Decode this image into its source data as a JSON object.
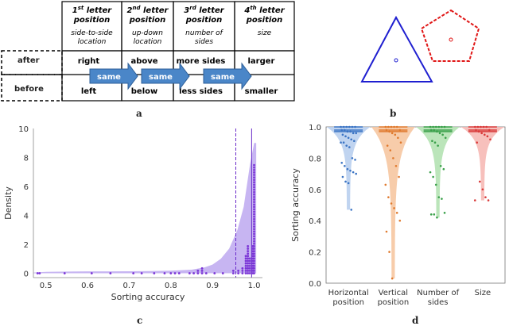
{
  "panel_a": {
    "columns": [
      {
        "ord": "1",
        "sup": "st",
        "title": "letter",
        "title2": "position",
        "desc1": "side-to-side",
        "desc2": "location"
      },
      {
        "ord": "2",
        "sup": "nd",
        "title": "letter",
        "title2": "position",
        "desc1": "up-down",
        "desc2": "location"
      },
      {
        "ord": "3",
        "sup": "rd",
        "title": "letter",
        "title2": "position",
        "desc1": "number of",
        "desc2": "sides"
      },
      {
        "ord": "4",
        "sup": "th",
        "title": "letter",
        "title2": "position",
        "desc1": "size",
        "desc2": ""
      }
    ],
    "rows": [
      "after",
      "before"
    ],
    "after_values": [
      "right",
      "above",
      "more sides",
      "larger"
    ],
    "before_values": [
      "left",
      "below",
      "less sides",
      "smaller"
    ],
    "arrow_label": "same",
    "caption": "a"
  },
  "panel_b": {
    "caption": "b",
    "colors": {
      "triangle": "#1f1fd0",
      "pentagon": "#e01515"
    }
  },
  "panel_c": {
    "caption": "c",
    "chart_data": {
      "type": "scatter",
      "xlabel": "Sorting accuracy",
      "ylabel": "Density",
      "xlim": [
        0.47,
        1.02
      ],
      "ylim": [
        -0.3,
        10
      ],
      "xticks": [
        "0.5",
        "0.6",
        "0.7",
        "0.8",
        "0.9",
        "1.0"
      ],
      "yticks": [
        "0",
        "2",
        "4",
        "6",
        "8",
        "10"
      ],
      "vlines": [
        {
          "x": 0.956,
          "style": "dashed"
        },
        {
          "x": 0.994,
          "style": "solid"
        }
      ],
      "density_curve": [
        [
          0.47,
          0.05
        ],
        [
          0.5,
          0.1
        ],
        [
          0.55,
          0.12
        ],
        [
          0.6,
          0.13
        ],
        [
          0.65,
          0.13
        ],
        [
          0.7,
          0.14
        ],
        [
          0.75,
          0.15
        ],
        [
          0.8,
          0.18
        ],
        [
          0.85,
          0.25
        ],
        [
          0.88,
          0.4
        ],
        [
          0.9,
          0.6
        ],
        [
          0.92,
          1.0
        ],
        [
          0.94,
          1.7
        ],
        [
          0.96,
          3.0
        ],
        [
          0.975,
          4.6
        ],
        [
          0.99,
          7.5
        ],
        [
          1.0,
          9.0
        ],
        [
          1.005,
          9.0
        ]
      ],
      "stack_points": [
        {
          "x": 0.48,
          "n": 1
        },
        {
          "x": 0.485,
          "n": 1
        },
        {
          "x": 0.545,
          "n": 1
        },
        {
          "x": 0.61,
          "n": 1
        },
        {
          "x": 0.655,
          "n": 1
        },
        {
          "x": 0.71,
          "n": 1
        },
        {
          "x": 0.73,
          "n": 1
        },
        {
          "x": 0.76,
          "n": 1
        },
        {
          "x": 0.785,
          "n": 1
        },
        {
          "x": 0.8,
          "n": 1
        },
        {
          "x": 0.81,
          "n": 1
        },
        {
          "x": 0.82,
          "n": 1
        },
        {
          "x": 0.845,
          "n": 1
        },
        {
          "x": 0.855,
          "n": 1
        },
        {
          "x": 0.865,
          "n": 2
        },
        {
          "x": 0.875,
          "n": 3
        },
        {
          "x": 0.885,
          "n": 1
        },
        {
          "x": 0.905,
          "n": 1
        },
        {
          "x": 0.925,
          "n": 1
        },
        {
          "x": 0.95,
          "n": 2
        },
        {
          "x": 0.962,
          "n": 2
        },
        {
          "x": 0.972,
          "n": 3
        },
        {
          "x": 0.98,
          "n": 8
        },
        {
          "x": 0.985,
          "n": 12
        },
        {
          "x": 0.99,
          "n": 7
        },
        {
          "x": 0.997,
          "n": 12
        },
        {
          "x": 1.0,
          "n": 45
        }
      ]
    }
  },
  "panel_d": {
    "caption": "d",
    "chart_data": {
      "type": "scatter",
      "ylabel": "Sorting accuracy",
      "ylim": [
        0.0,
        1.0
      ],
      "yticks": [
        "0.0",
        "0.2",
        "0.4",
        "0.6",
        "0.8",
        "1.0"
      ],
      "categories": [
        "Horizontal position",
        "Vertical position",
        "Number of sides",
        "Size"
      ],
      "category_lines": [
        [
          "Horizontal",
          "position"
        ],
        [
          "Vertical",
          "position"
        ],
        [
          "Number of",
          "sides"
        ],
        [
          "Size",
          ""
        ]
      ],
      "colors": [
        "#3b74c4",
        "#e07a2e",
        "#3aa04a",
        "#d93a3a"
      ],
      "violin_colors": [
        "#b9cfee",
        "#f6c7a1",
        "#b4e2b3",
        "#f6b9b5"
      ],
      "series": [
        {
          "name": "Horizontal position",
          "values": [
            1,
            1,
            1,
            1,
            1,
            1,
            0.98,
            0.98,
            0.97,
            0.97,
            0.96,
            0.96,
            0.95,
            0.94,
            0.93,
            0.92,
            0.91,
            0.9,
            0.9,
            0.88,
            0.87,
            0.8,
            0.79,
            0.77,
            0.75,
            0.73,
            0.72,
            0.71,
            0.7,
            0.68,
            0.65,
            0.64,
            0.47
          ]
        },
        {
          "name": "Vertical position",
          "values": [
            1,
            1,
            1,
            1,
            1,
            0.98,
            0.98,
            0.97,
            0.96,
            0.95,
            0.93,
            0.9,
            0.88,
            0.85,
            0.8,
            0.75,
            0.68,
            0.63,
            0.55,
            0.51,
            0.48,
            0.45,
            0.4,
            0.33,
            0.2,
            0.03
          ]
        },
        {
          "name": "Number of sides",
          "values": [
            1,
            1,
            1,
            1,
            1,
            1,
            0.98,
            0.98,
            0.97,
            0.96,
            0.95,
            0.93,
            0.91,
            0.9,
            0.88,
            0.75,
            0.73,
            0.71,
            0.68,
            0.63,
            0.55,
            0.54,
            0.45,
            0.44,
            0.44,
            0.42
          ]
        },
        {
          "name": "Size",
          "values": [
            1,
            1,
            1,
            1,
            1,
            0.98,
            0.98,
            0.97,
            0.96,
            0.95,
            0.94,
            0.92,
            0.9,
            0.65,
            0.6,
            0.55,
            0.53,
            0.53
          ]
        }
      ]
    }
  }
}
